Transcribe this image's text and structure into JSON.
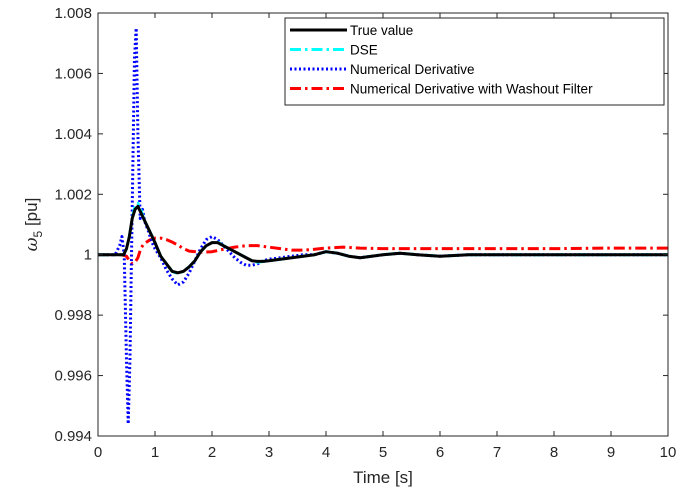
{
  "chart_data": {
    "type": "line",
    "title": "",
    "xlabel": "Time [s]",
    "ylabel_main": "ω",
    "ylabel_sub": "5",
    "ylabel_unit": " [pu]",
    "xlim": [
      0,
      10
    ],
    "ylim": [
      0.994,
      1.008
    ],
    "xticks": [
      0,
      1,
      2,
      3,
      4,
      5,
      6,
      7,
      8,
      9,
      10
    ],
    "xtick_labels": [
      "0",
      "1",
      "2",
      "3",
      "4",
      "5",
      "6",
      "7",
      "8",
      "9",
      "10"
    ],
    "yticks": [
      0.994,
      0.996,
      0.998,
      1.0,
      1.002,
      1.004,
      1.006,
      1.008
    ],
    "ytick_labels": [
      "0.994",
      "0.996",
      "0.998",
      "1",
      "1.002",
      "1.004",
      "1.006",
      "1.008"
    ],
    "grid": false,
    "legend_position": "top-right",
    "series": [
      {
        "name": "True value",
        "color": "#000000",
        "dash": "solid",
        "x": [
          0,
          0.3,
          0.45,
          0.5,
          0.55,
          0.6,
          0.65,
          0.7,
          0.75,
          0.8,
          0.9,
          1.0,
          1.1,
          1.2,
          1.3,
          1.4,
          1.5,
          1.6,
          1.7,
          1.8,
          1.9,
          2.0,
          2.1,
          2.2,
          2.3,
          2.4,
          2.5,
          2.6,
          2.7,
          2.8,
          2.9,
          3.0,
          3.2,
          3.4,
          3.6,
          3.8,
          4.0,
          4.2,
          4.4,
          4.6,
          4.8,
          5.0,
          5.3,
          5.6,
          6.0,
          6.5,
          7.0,
          8.0,
          9.0,
          10.0
        ],
        "y": [
          1.0,
          1.0,
          1.0,
          1.0002,
          1.0006,
          1.0012,
          1.0015,
          1.0016,
          1.0014,
          1.0012,
          1.0008,
          1.0004,
          0.99995,
          0.9997,
          0.99945,
          0.9994,
          0.99945,
          0.9996,
          0.9998,
          1.0001,
          1.0003,
          1.0004,
          1.0004,
          1.0003,
          1.0002,
          1.0001,
          1.0,
          0.9999,
          0.9998,
          0.99978,
          0.99978,
          0.9998,
          0.99985,
          0.9999,
          0.99995,
          1.0,
          1.0001,
          1.00005,
          0.99995,
          0.9999,
          0.99995,
          1.0,
          1.00005,
          1.0,
          0.99995,
          1.0,
          1.0,
          1.0,
          1.0,
          1.0
        ]
      },
      {
        "name": "DSE",
        "color": "#00ffff",
        "dash": "dashdot",
        "x": [
          0,
          0.3,
          0.45,
          0.5,
          0.55,
          0.6,
          0.65,
          0.7,
          0.75,
          0.8,
          0.9,
          1.0,
          1.1,
          1.2,
          1.3,
          1.4,
          1.5,
          1.6,
          1.7,
          1.8,
          1.9,
          2.0,
          2.1,
          2.2,
          2.3,
          2.4,
          2.5,
          2.6,
          2.7,
          2.8,
          2.9,
          3.0,
          3.2,
          3.4,
          3.6,
          3.8,
          4.0,
          4.2,
          4.4,
          4.6,
          4.8,
          5.0,
          5.3,
          5.6,
          6.0,
          6.5,
          7.0,
          8.0,
          9.0,
          10.0
        ],
        "y": [
          1.0,
          1.0,
          1.0,
          1.0002,
          1.0006,
          1.0012,
          1.0016,
          1.0017,
          1.0015,
          1.0012,
          1.0008,
          1.0004,
          0.99995,
          0.9997,
          0.99945,
          0.99938,
          0.99945,
          0.9996,
          0.9998,
          1.0001,
          1.0003,
          1.0004,
          1.00042,
          1.0003,
          1.0002,
          1.0001,
          1.0,
          0.9999,
          0.9998,
          0.99975,
          0.99978,
          0.9998,
          0.99985,
          0.9999,
          0.99995,
          1.0,
          1.0001,
          1.00005,
          0.99995,
          0.9999,
          0.99995,
          1.0,
          1.00005,
          1.0,
          0.99995,
          1.0,
          1.0,
          1.0,
          1.0,
          1.0
        ]
      },
      {
        "name": "Numerical Derivative",
        "color": "#0000ff",
        "dash": "dotted",
        "x": [
          0,
          0.3,
          0.38,
          0.42,
          0.46,
          0.5,
          0.53,
          0.56,
          0.6,
          0.64,
          0.67,
          0.7,
          0.74,
          0.78,
          0.82,
          0.88,
          0.95,
          1.0,
          1.1,
          1.2,
          1.3,
          1.4,
          1.5,
          1.6,
          1.7,
          1.8,
          1.9,
          2.0,
          2.1,
          2.2,
          2.3,
          2.4,
          2.5,
          2.6,
          2.7,
          2.8,
          2.9,
          3.0,
          3.2,
          3.4,
          3.6,
          3.8,
          4.0,
          4.2,
          4.4,
          4.6,
          4.8,
          5.0,
          5.3,
          5.6,
          6.0,
          6.5,
          7.0,
          8.0,
          9.0,
          10.0
        ],
        "y": [
          1.0,
          1.0,
          1.0003,
          1.0006,
          1.0,
          0.9965,
          0.9944,
          0.9965,
          1.0015,
          1.0065,
          1.0075,
          1.004,
          1.0012,
          1.0015,
          1.0011,
          1.0008,
          1.0004,
          1.0002,
          0.9999,
          0.9995,
          0.9992,
          0.999,
          0.9991,
          0.9994,
          0.9998,
          1.0002,
          1.0005,
          1.0006,
          1.0005,
          1.0003,
          1.0001,
          0.9999,
          0.99975,
          0.99965,
          0.99965,
          0.9997,
          0.9998,
          0.99985,
          0.9999,
          0.99995,
          1.0,
          1.0,
          1.0001,
          1.00005,
          0.99995,
          0.9999,
          0.99995,
          1.0,
          1.00005,
          1.0,
          0.99995,
          1.0,
          1.0,
          1.0,
          1.0,
          1.0
        ]
      },
      {
        "name": "Numerical Derivative with Washout Filter",
        "color": "#ff0000",
        "dash": "dashdot",
        "x": [
          0,
          0.4,
          0.5,
          0.55,
          0.6,
          0.65,
          0.7,
          0.75,
          0.8,
          0.9,
          1.0,
          1.1,
          1.2,
          1.3,
          1.4,
          1.5,
          1.6,
          1.8,
          2.0,
          2.2,
          2.4,
          2.6,
          2.8,
          3.0,
          3.2,
          3.4,
          3.6,
          3.8,
          4.0,
          4.3,
          4.6,
          5.0,
          6.0,
          7.0,
          8.0,
          9.0,
          10.0
        ],
        "y": [
          1.0,
          1.0,
          0.99995,
          0.9998,
          0.9997,
          0.99975,
          0.9999,
          1.0002,
          1.00035,
          1.00048,
          1.00055,
          1.00055,
          1.0005,
          1.00042,
          1.00032,
          1.0002,
          1.00012,
          1.00008,
          1.0001,
          1.00018,
          1.00025,
          1.0003,
          1.0003,
          1.00025,
          1.0002,
          1.00015,
          1.00015,
          1.00018,
          1.00022,
          1.00025,
          1.00022,
          1.0002,
          1.0002,
          1.0002,
          1.0002,
          1.00022,
          1.00022
        ]
      }
    ]
  }
}
